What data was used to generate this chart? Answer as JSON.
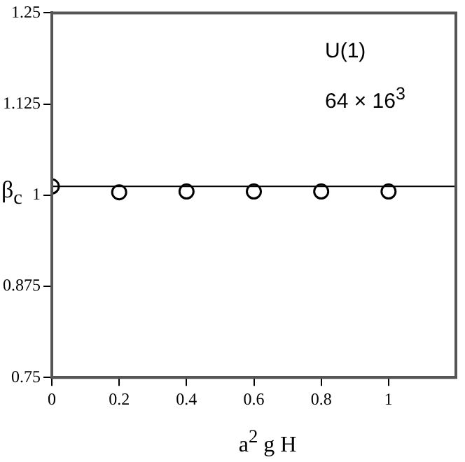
{
  "chart_data": {
    "type": "scatter",
    "xlabel": "a$^{2}$ g H",
    "ylabel": "β$_{c}$",
    "annotations": [
      "U(1)",
      "64 × 16$^{3}$"
    ],
    "x": [
      0,
      0.2,
      0.4,
      0.6,
      0.8,
      1.0
    ],
    "series": [
      {
        "color": "#000000",
        "values": [
          1.012,
          1.004,
          1.005,
          1.005,
          1.005,
          1.005
        ]
      }
    ],
    "xlim": [
      0,
      1.2
    ],
    "xticks": [
      0,
      0.2,
      0.4,
      0.6,
      0.8,
      1
    ],
    "ylim": [
      0.75,
      1.25
    ],
    "yticks": [
      0.75,
      0.875,
      1,
      1.125,
      1.25
    ],
    "ref_lines": [
      {
        "axis": "y",
        "value": 1.012,
        "color": "#000000",
        "line_style": "solid"
      }
    ],
    "marker": "circle",
    "grid": false,
    "legend": false
  }
}
